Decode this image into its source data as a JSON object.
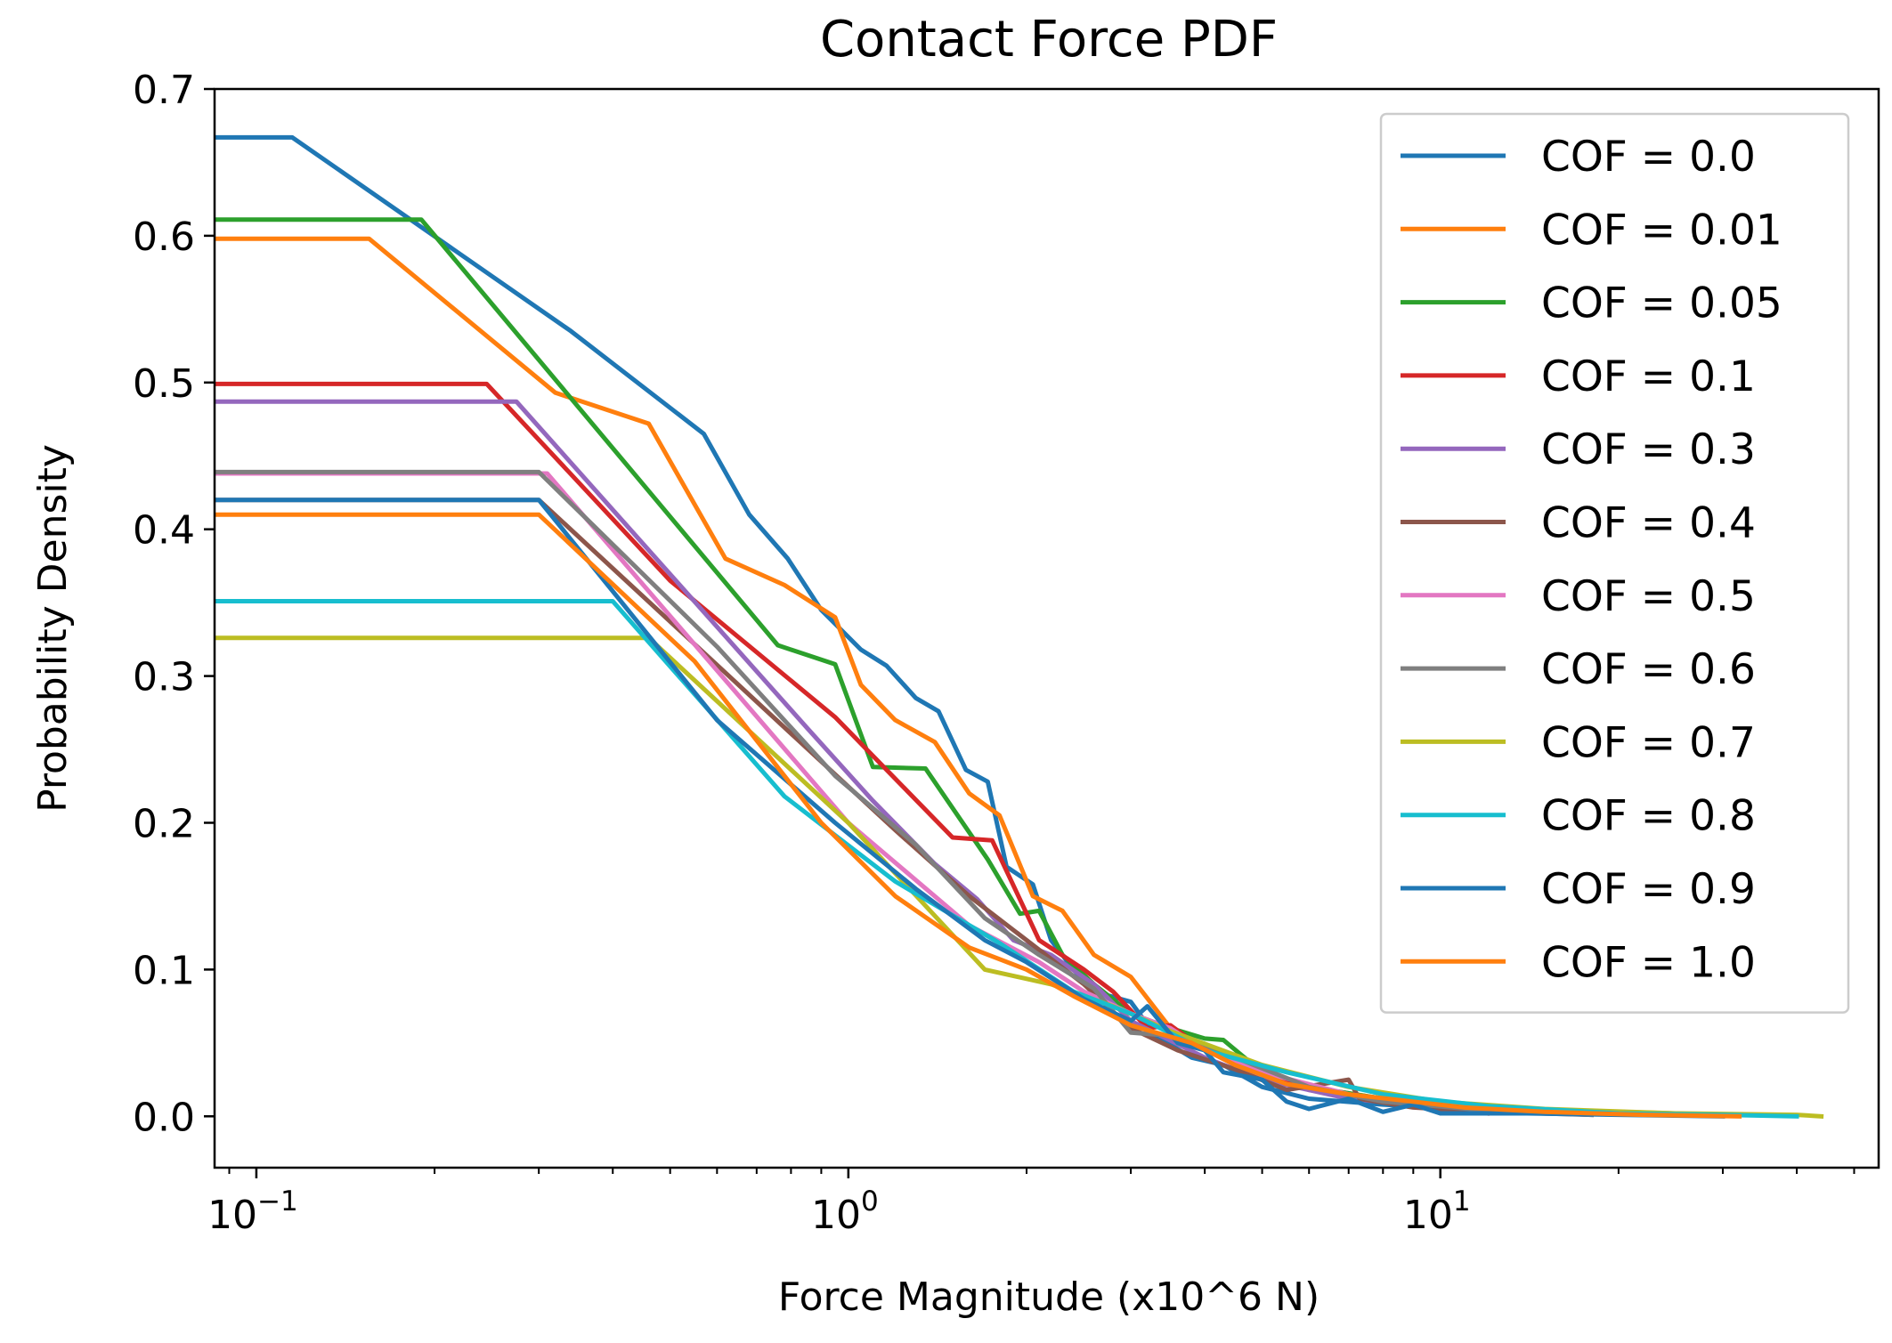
{
  "chart_data": {
    "type": "line",
    "title": "Contact Force PDF",
    "xlabel": "Force Magnitude (x10^6 N)",
    "ylabel": "Probability Density",
    "xscale": "log",
    "xlim": [
      0.085,
      55
    ],
    "ylim": [
      -0.035,
      0.7
    ],
    "grid": false,
    "legend_position": "top-right",
    "yticks": [
      {
        "value": 0.0,
        "label": "0.0"
      },
      {
        "value": 0.1,
        "label": "0.1"
      },
      {
        "value": 0.2,
        "label": "0.2"
      },
      {
        "value": 0.3,
        "label": "0.3"
      },
      {
        "value": 0.4,
        "label": "0.4"
      },
      {
        "value": 0.5,
        "label": "0.5"
      },
      {
        "value": 0.6,
        "label": "0.6"
      },
      {
        "value": 0.7,
        "label": "0.7"
      }
    ],
    "xticks": [
      {
        "value": 0.1,
        "base": "10",
        "exp": "−1"
      },
      {
        "value": 1,
        "base": "10",
        "exp": "0"
      },
      {
        "value": 10,
        "base": "10",
        "exp": "1"
      }
    ],
    "series": [
      {
        "name": "COF = 0.0",
        "color": "#1f77b4",
        "x": [
          0.085,
          0.115,
          0.34,
          0.57,
          0.68,
          0.79,
          0.9,
          1.05,
          1.16,
          1.3,
          1.42,
          1.58,
          1.72,
          1.85,
          2.05,
          2.2,
          2.4,
          2.6,
          3.0,
          3.3,
          3.8,
          4.3,
          5.0,
          6.0,
          8.0,
          10.0,
          13.0,
          18.0,
          25.0
        ],
        "y": [
          0.667,
          0.667,
          0.535,
          0.465,
          0.41,
          0.38,
          0.345,
          0.318,
          0.307,
          0.285,
          0.276,
          0.236,
          0.228,
          0.17,
          0.158,
          0.12,
          0.1,
          0.085,
          0.078,
          0.055,
          0.04,
          0.035,
          0.02,
          0.012,
          0.008,
          0.006,
          0.004,
          0.002,
          0.001
        ]
      },
      {
        "name": "COF = 0.01",
        "color": "#ff7f0e",
        "x": [
          0.085,
          0.155,
          0.32,
          0.46,
          0.62,
          0.78,
          0.95,
          1.05,
          1.2,
          1.4,
          1.6,
          1.8,
          2.05,
          2.3,
          2.6,
          3.0,
          3.5,
          4.0,
          5.0,
          6.0,
          8.0,
          10.0,
          14.0,
          20.0,
          30.0
        ],
        "y": [
          0.598,
          0.598,
          0.493,
          0.472,
          0.38,
          0.362,
          0.34,
          0.294,
          0.27,
          0.255,
          0.22,
          0.205,
          0.15,
          0.14,
          0.11,
          0.095,
          0.06,
          0.045,
          0.03,
          0.02,
          0.012,
          0.008,
          0.005,
          0.003,
          0.001
        ]
      },
      {
        "name": "COF = 0.05",
        "color": "#2ca02c",
        "x": [
          0.085,
          0.19,
          0.76,
          0.95,
          1.1,
          1.35,
          1.72,
          1.95,
          2.1,
          2.3,
          2.6,
          3.0,
          3.5,
          4.0,
          4.3,
          5.0,
          6.0,
          8.0,
          10.0,
          14.0,
          20.0
        ],
        "y": [
          0.611,
          0.611,
          0.321,
          0.308,
          0.238,
          0.237,
          0.175,
          0.138,
          0.14,
          0.11,
          0.09,
          0.07,
          0.06,
          0.053,
          0.052,
          0.03,
          0.02,
          0.012,
          0.008,
          0.004,
          0.002
        ]
      },
      {
        "name": "COF = 0.1",
        "color": "#d62728",
        "x": [
          0.085,
          0.245,
          0.5,
          0.95,
          1.2,
          1.5,
          1.75,
          2.1,
          2.5,
          2.8,
          3.2,
          3.5,
          4.0,
          5.0,
          6.0,
          8.0,
          10.0,
          12.0
        ],
        "y": [
          0.499,
          0.499,
          0.365,
          0.272,
          0.23,
          0.19,
          0.188,
          0.12,
          0.1,
          0.085,
          0.06,
          0.062,
          0.045,
          0.03,
          0.018,
          0.01,
          0.005,
          0.002
        ]
      },
      {
        "name": "COF = 0.3",
        "color": "#9467bd",
        "x": [
          0.085,
          0.275,
          0.85,
          1.1,
          1.4,
          1.65,
          1.9,
          2.2,
          2.6,
          3.0,
          4.0,
          5.0,
          7.0,
          10.0,
          15.0
        ],
        "y": [
          0.487,
          0.487,
          0.265,
          0.215,
          0.172,
          0.148,
          0.12,
          0.11,
          0.09,
          0.065,
          0.04,
          0.025,
          0.012,
          0.006,
          0.002
        ]
      },
      {
        "name": "COF = 0.4",
        "color": "#8c564b",
        "x": [
          0.085,
          0.3,
          1.2,
          1.6,
          2.0,
          2.5,
          3.0,
          3.6,
          4.5,
          5.5,
          7.0,
          7.3,
          9.0,
          12.0,
          18.0
        ],
        "y": [
          0.42,
          0.42,
          0.195,
          0.15,
          0.12,
          0.09,
          0.06,
          0.045,
          0.032,
          0.018,
          0.025,
          0.012,
          0.006,
          0.003,
          0.001
        ]
      },
      {
        "name": "COF = 0.5",
        "color": "#e377c2",
        "x": [
          0.085,
          0.31,
          1.0,
          1.6,
          2.1,
          2.5,
          3.0,
          3.5,
          4.0,
          5.0,
          7.0,
          10.0,
          15.0,
          22.0
        ],
        "y": [
          0.438,
          0.438,
          0.2,
          0.13,
          0.105,
          0.085,
          0.07,
          0.06,
          0.045,
          0.03,
          0.015,
          0.007,
          0.003,
          0.001
        ]
      },
      {
        "name": "COF = 0.6",
        "color": "#7f7f7f",
        "x": [
          0.085,
          0.3,
          0.6,
          0.95,
          1.3,
          1.7,
          2.1,
          2.6,
          3.0,
          3.5,
          4.5,
          6.0,
          8.0,
          12.0,
          18.0
        ],
        "y": [
          0.439,
          0.439,
          0.32,
          0.232,
          0.185,
          0.135,
          0.11,
          0.087,
          0.057,
          0.055,
          0.04,
          0.02,
          0.01,
          0.004,
          0.001
        ]
      },
      {
        "name": "COF = 0.7",
        "color": "#bcbd22",
        "x": [
          0.085,
          0.46,
          1.0,
          1.7,
          2.2,
          2.8,
          3.5,
          5.0,
          7.0,
          10.0,
          15.0,
          25.0,
          40.0,
          44.0
        ],
        "y": [
          0.326,
          0.326,
          0.2,
          0.1,
          0.09,
          0.075,
          0.058,
          0.035,
          0.02,
          0.01,
          0.005,
          0.002,
          0.001,
          0.0
        ]
      },
      {
        "name": "COF = 0.8",
        "color": "#17becf",
        "x": [
          0.085,
          0.4,
          0.78,
          1.2,
          1.8,
          2.4,
          3.0,
          4.0,
          5.5,
          8.0,
          12.0,
          20.0,
          30.0,
          40.0
        ],
        "y": [
          0.351,
          0.351,
          0.218,
          0.16,
          0.118,
          0.085,
          0.07,
          0.045,
          0.03,
          0.015,
          0.007,
          0.002,
          0.001,
          0.0
        ]
      },
      {
        "name": "COF = 0.9",
        "color": "#1f77b4",
        "x": [
          0.085,
          0.3,
          0.6,
          0.95,
          1.3,
          1.7,
          2.0,
          2.5,
          3.0,
          3.2,
          3.6,
          4.0,
          4.3,
          5.0,
          5.5,
          6.0,
          7.0,
          8.0,
          9.0,
          10.0,
          14.0,
          20.0,
          30.0
        ],
        "y": [
          0.42,
          0.42,
          0.27,
          0.2,
          0.155,
          0.12,
          0.105,
          0.08,
          0.065,
          0.075,
          0.05,
          0.045,
          0.03,
          0.025,
          0.01,
          0.005,
          0.012,
          0.003,
          0.008,
          0.002,
          0.002,
          0.001,
          0.0
        ]
      },
      {
        "name": "COF = 1.0",
        "color": "#ff7f0e",
        "x": [
          0.085,
          0.3,
          0.55,
          0.9,
          1.2,
          1.6,
          2.0,
          2.4,
          3.0,
          3.8,
          4.5,
          5.5,
          7.0,
          9.0,
          11.0,
          15.0,
          22.0,
          32.0
        ],
        "y": [
          0.41,
          0.41,
          0.31,
          0.2,
          0.15,
          0.115,
          0.1,
          0.082,
          0.062,
          0.05,
          0.035,
          0.022,
          0.015,
          0.01,
          0.006,
          0.003,
          0.001,
          0.0
        ]
      }
    ]
  }
}
